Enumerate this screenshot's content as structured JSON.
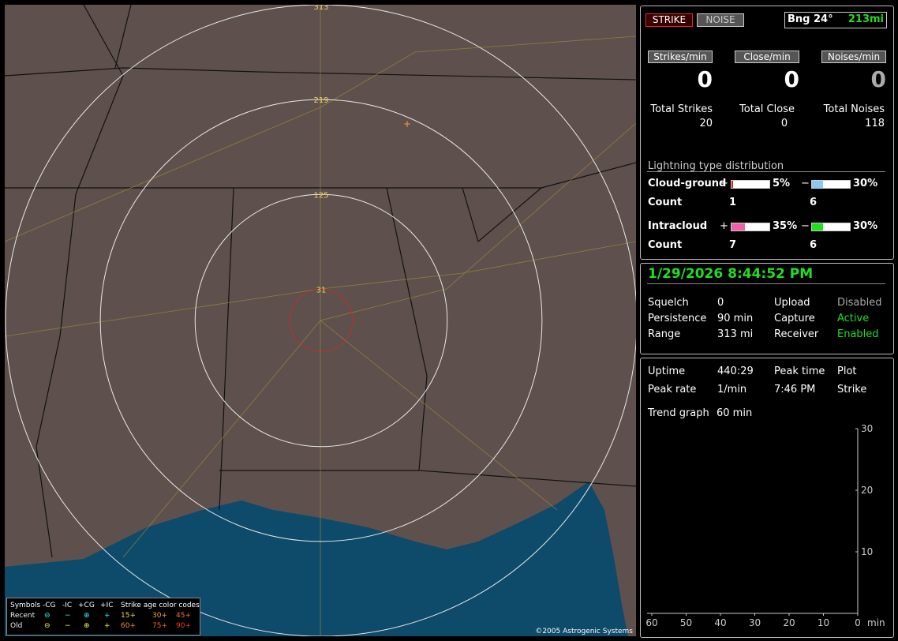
{
  "header": {
    "strike_button": "STRIKE",
    "noise_button": "NOISE",
    "bearing": "Bng 24°",
    "distance": "213mi"
  },
  "rates": [
    {
      "label": "Strikes/min",
      "value": "0",
      "total_label": "Total Strikes",
      "total": "20"
    },
    {
      "label": "Close/min",
      "value": "0",
      "total_label": "Total Close",
      "total": "0"
    },
    {
      "label": "Noises/min",
      "value": "0",
      "total_label": "Total Noises",
      "total": "118"
    }
  ],
  "distribution": {
    "title": "Lightning type distribution",
    "rows": [
      {
        "name": "Cloud-ground",
        "count_label": "Count",
        "positive": {
          "sign": "+",
          "percent": 5,
          "label": "5%",
          "count": "1",
          "color": "#e02020"
        },
        "negative": {
          "sign": "−",
          "percent": 30,
          "label": "30%",
          "count": "6",
          "color": "#8cc8f0"
        }
      },
      {
        "name": "Intracloud",
        "count_label": "Count",
        "positive": {
          "sign": "+",
          "percent": 35,
          "label": "35%",
          "count": "7",
          "color": "#f060a8"
        },
        "negative": {
          "sign": "−",
          "percent": 30,
          "label": "30%",
          "count": "6",
          "color": "#20e020"
        }
      }
    ]
  },
  "status": {
    "datetime": "1/29/2026 8:44:52 PM",
    "rows": [
      [
        "Squelch",
        "0",
        "Upload",
        "Disabled"
      ],
      [
        "Persistence",
        "90 min",
        "Capture",
        "Active"
      ],
      [
        "Range",
        "313 mi",
        "Receiver",
        "Enabled"
      ]
    ]
  },
  "stats": {
    "rows": [
      [
        "Uptime",
        "440:29",
        "Peak time",
        "Plot"
      ],
      [
        "Peak rate",
        "1/min",
        "7:46 PM",
        "Strike"
      ]
    ]
  },
  "trend": {
    "label": "Trend graph",
    "value": "60 min",
    "xlim": [
      60,
      0
    ],
    "xticks": [
      60,
      50,
      40,
      30,
      20,
      10,
      0
    ],
    "x_unit": "min",
    "ylim": [
      0,
      30
    ],
    "yticks": [
      10,
      20,
      30
    ]
  },
  "map": {
    "rings": [
      31,
      125,
      219,
      313
    ],
    "copyright": "©2005 Astrogenic Systems",
    "legend": {
      "header": [
        "Symbols",
        "-CG",
        "-IC",
        "+CG",
        "+IC",
        "Strike age color codes"
      ],
      "rows": [
        [
          "Recent",
          "⊖",
          "−",
          "⊕",
          "+",
          "15+",
          "30+",
          "45+"
        ],
        [
          "Old",
          "⊖",
          "−",
          "⊕",
          "+",
          "60+",
          "75+",
          "90+"
        ]
      ]
    }
  }
}
